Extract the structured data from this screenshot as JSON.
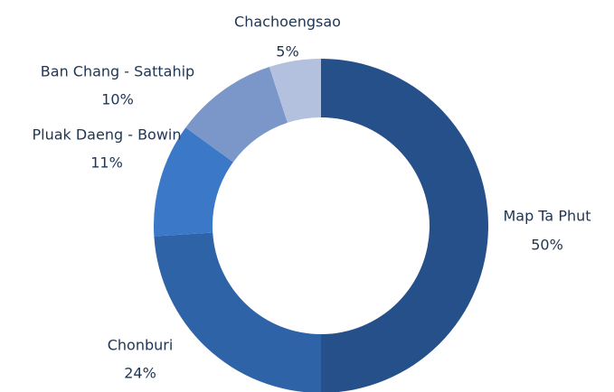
{
  "chart_data": {
    "type": "donut",
    "categories": [
      "Map Ta Phut",
      "Chonburi",
      "Pluak Daeng - Bowin",
      "Ban Chang - Sattahip",
      "Chachoengsao"
    ],
    "values": [
      50,
      24,
      11,
      10,
      5
    ],
    "value_labels": [
      "50%",
      "24%",
      "11%",
      "10%",
      "5%"
    ],
    "colors": [
      "#25508a",
      "#2e63a8",
      "#3b79c8",
      "#7b97c9",
      "#b3c1de"
    ]
  }
}
